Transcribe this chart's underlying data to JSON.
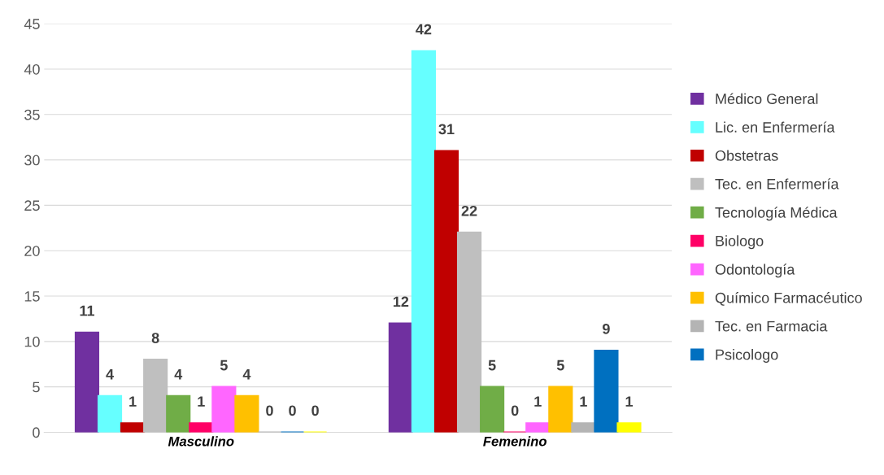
{
  "chart_data": {
    "type": "bar",
    "categories": [
      "Masculino",
      "Femenino"
    ],
    "series": [
      {
        "name": "Médico General",
        "color": "#7030a0",
        "values": [
          11,
          12
        ]
      },
      {
        "name": "Lic. en Enfermería",
        "color": "#66ffff",
        "values": [
          4,
          42
        ]
      },
      {
        "name": "Obstetras",
        "color": "#c00000",
        "values": [
          1,
          31
        ]
      },
      {
        "name": "Tec. en Enfermería",
        "color": "#bfbfbf",
        "values": [
          8,
          22
        ]
      },
      {
        "name": "Tecnología Médica",
        "color": "#70ad47",
        "values": [
          4,
          5
        ]
      },
      {
        "name": "Biologo",
        "color": "#ff0066",
        "values": [
          1,
          0
        ]
      },
      {
        "name": "Odontología",
        "color": "#ff66ff",
        "values": [
          5,
          1
        ]
      },
      {
        "name": "Químico Farmacéutico",
        "color": "#ffc000",
        "values": [
          4,
          5
        ]
      },
      {
        "name": "Tec. en Farmacia",
        "color": "#b4b4b4",
        "values": [
          0,
          1
        ]
      },
      {
        "name": "Psicologo",
        "color": "#0070c0",
        "values": [
          0,
          9
        ]
      },
      {
        "color": "#ffff00",
        "values": [
          0,
          1
        ]
      }
    ],
    "ylim": [
      0,
      45
    ],
    "yticks": [
      0,
      5,
      10,
      15,
      20,
      25,
      30,
      35,
      40,
      45
    ],
    "grid": "y",
    "legend": "right",
    "data_labels": true
  }
}
